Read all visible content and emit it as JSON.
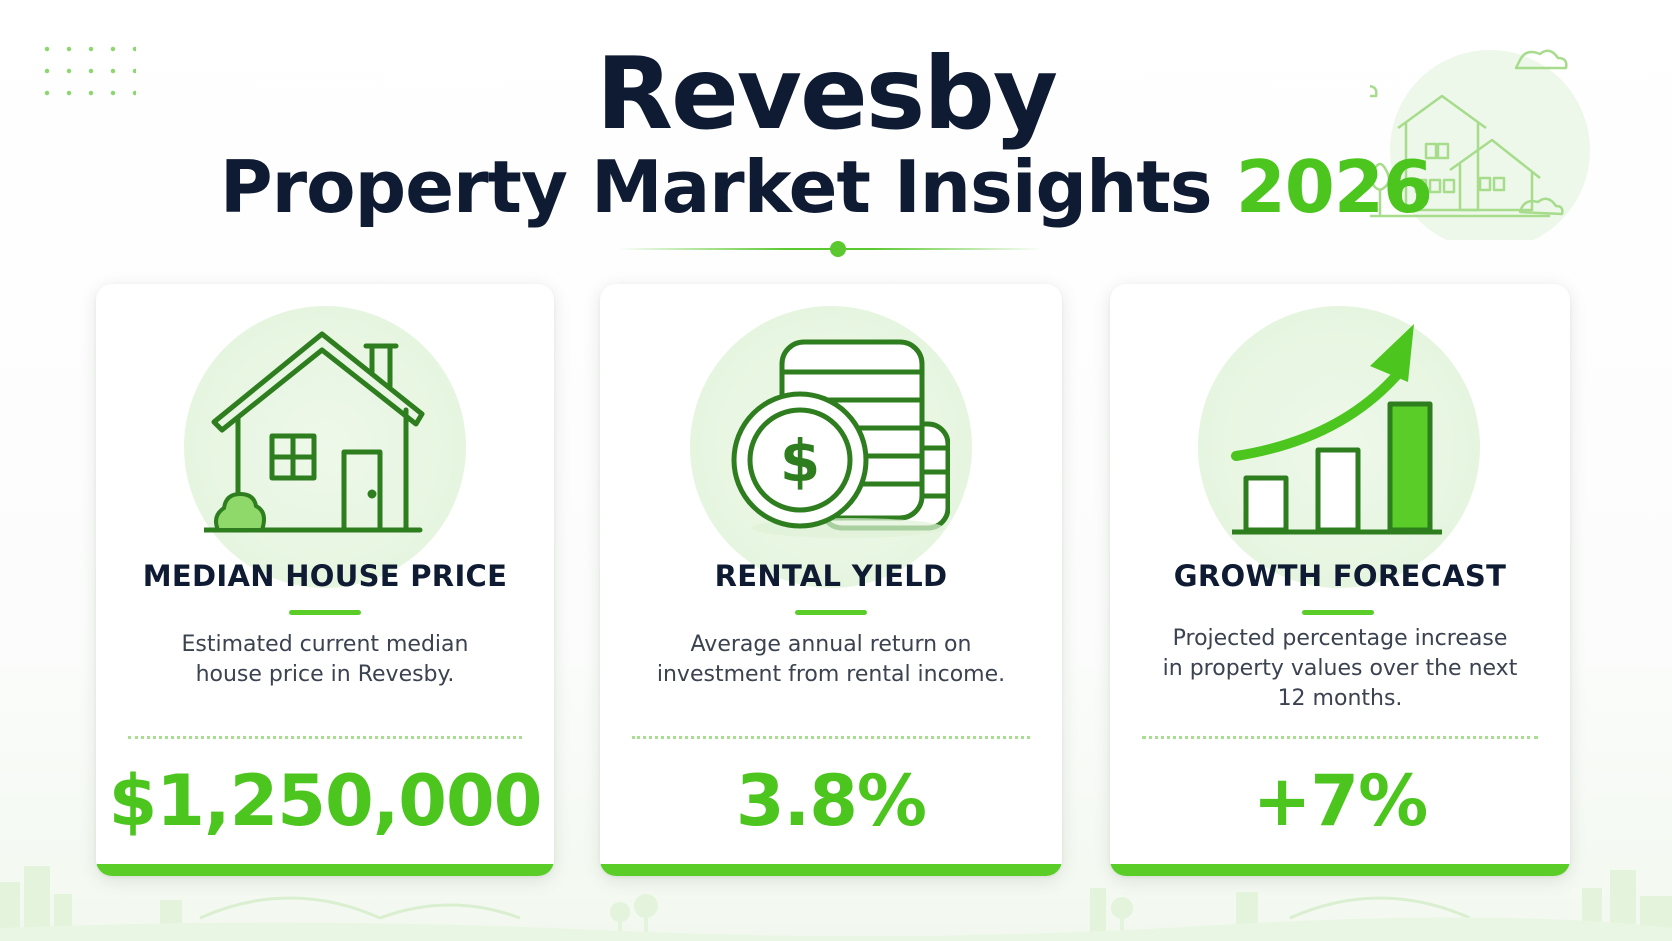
{
  "header": {
    "title": "Revesby",
    "subtitle": "Property Market Insights",
    "year": "2026"
  },
  "cards": [
    {
      "icon": "house-icon",
      "title": "MEDIAN HOUSE PRICE",
      "description": "Estimated current median house price in Revesby.",
      "value": "$1,250,000"
    },
    {
      "icon": "coins-icon",
      "title": "RENTAL YIELD",
      "description": "Average annual return on investment from rental income.",
      "value": "3.8%"
    },
    {
      "icon": "growth-chart-icon",
      "title": "GROWTH FORECAST",
      "description": "Projected percentage increase in property values over the next 12 months.",
      "value": "+7%"
    }
  ],
  "colors": {
    "accent": "#4cc61e",
    "title": "#0f1b33",
    "body_text": "#3b4250",
    "icon_stroke": "#2e7d1e",
    "icon_background": "#e6f5e0"
  }
}
